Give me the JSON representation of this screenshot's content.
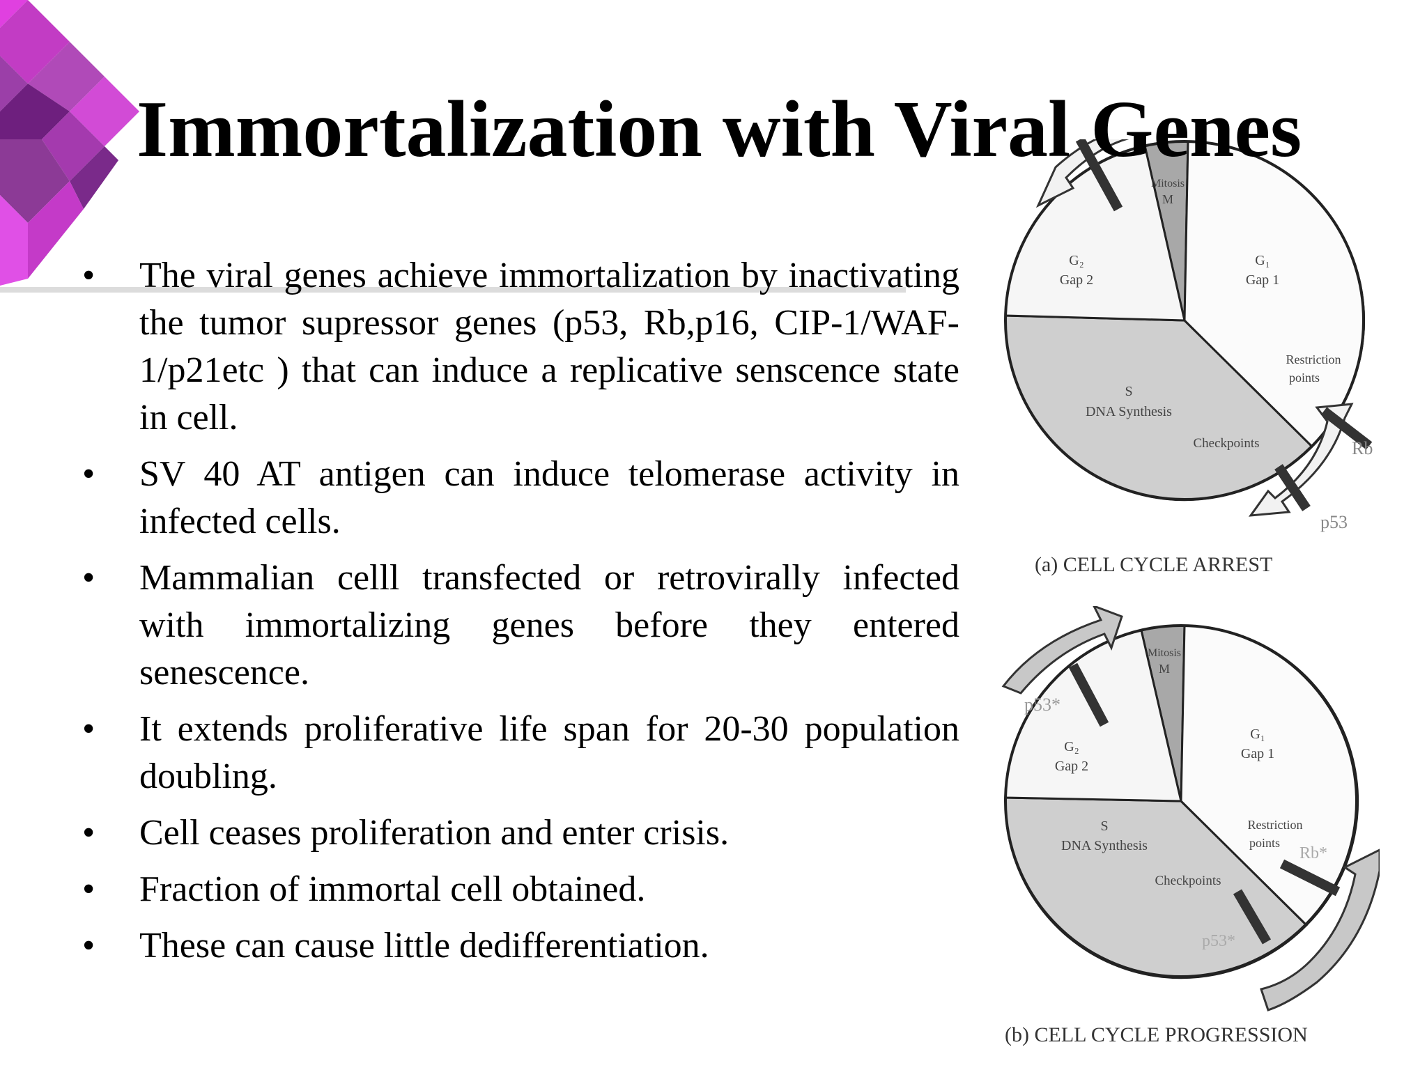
{
  "slide": {
    "title": "Immortalization with Viral Genes",
    "bullets": [
      "The viral genes  achieve immortalization by inactivating  the tumor supressor genes (p53, Rb,p16, CIP-1/WAF-1/p21etc ) that can induce a replicative  senscence state in cell.",
      "SV 40 AT antigen can induce telomerase activity in infected cells.",
      "Mammalian celll transfected or retrovirally infected with immortalizing  genes before  they entered senescence.",
      "It extends  proliferative life span for 20-30 population  doubling.",
      "Cell ceases proliferation  and enter crisis.",
      "Fraction of immortal cell obtained.",
      "These can cause little dedifferentiation."
    ],
    "bullet_symbol": "•"
  },
  "diagrams": {
    "phases": {
      "mitosis": "Mitosis",
      "m": "M",
      "g2": "G₂",
      "gap2": "Gap 2",
      "g1": "G₁",
      "gap1": "Gap 1",
      "s": "S",
      "dna": "DNA Synthesis",
      "restriction": "Restriction",
      "points": "points",
      "checkpoints": "Checkpoints"
    },
    "arrest": {
      "caption": "(a) CELL CYCLE ARREST",
      "rb": "Rb",
      "p53": "p53"
    },
    "progression": {
      "caption": "(b) CELL CYCLE PROGRESSION",
      "p53_top": "p53*",
      "rb": "Rb*",
      "p53_bottom": "p53*"
    }
  },
  "colors": {
    "logo_magenta": "#cc33cc",
    "logo_purple": "#7a2a8a",
    "gray_sector": "#c8c8c8",
    "dark_sector": "#a8a8a8"
  }
}
